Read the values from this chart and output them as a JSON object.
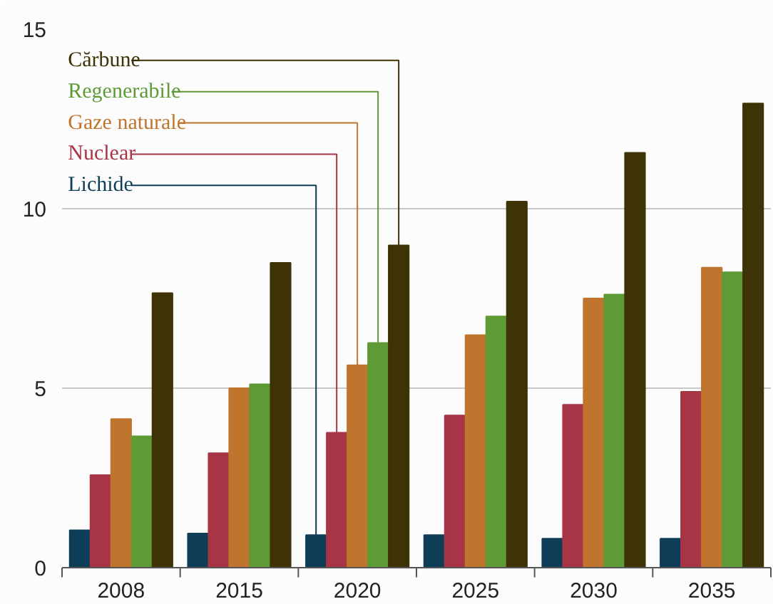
{
  "chart_data": {
    "type": "bar",
    "categories": [
      "2008",
      "2015",
      "2020",
      "2025",
      "2030",
      "2035"
    ],
    "series": [
      {
        "name": "Lichide",
        "color": "#0d3d57",
        "values": [
          1.04,
          0.95,
          0.91,
          0.91,
          0.81,
          0.81
        ]
      },
      {
        "name": "Nuclear",
        "color": "#a83545",
        "values": [
          2.58,
          3.19,
          3.76,
          4.24,
          4.54,
          4.9
        ]
      },
      {
        "name": "Gaze naturale",
        "color": "#c0752f",
        "values": [
          4.14,
          5.0,
          5.64,
          6.48,
          7.5,
          8.36
        ]
      },
      {
        "name": "Regenerabile",
        "color": "#5e9a35",
        "values": [
          3.66,
          5.11,
          6.26,
          7.0,
          7.61,
          8.23
        ]
      },
      {
        "name": "Cărbune",
        "color": "#3e3306",
        "values": [
          7.65,
          8.49,
          8.98,
          10.2,
          11.56,
          12.93
        ]
      }
    ],
    "ylim": [
      0,
      15
    ],
    "yticks": [
      0,
      5,
      10,
      15
    ],
    "grid": "y",
    "legend": "top left"
  }
}
